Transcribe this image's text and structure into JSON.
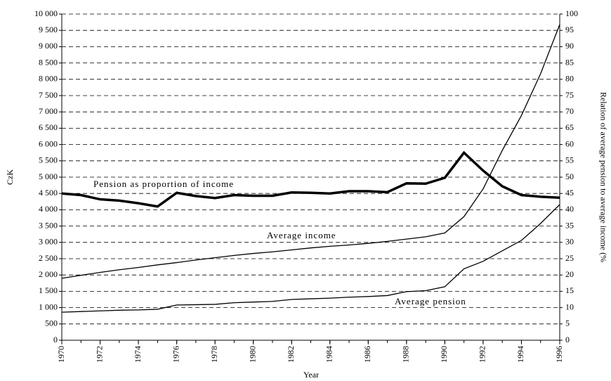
{
  "chart_data": {
    "type": "line",
    "x": [
      1970,
      1971,
      1972,
      1973,
      1974,
      1975,
      1976,
      1977,
      1978,
      1979,
      1980,
      1981,
      1982,
      1983,
      1984,
      1985,
      1986,
      1987,
      1988,
      1989,
      1990,
      1991,
      1992,
      1993,
      1994,
      1995,
      1996
    ],
    "xlim": [
      1970,
      1996
    ],
    "xticks": [
      1970,
      1972,
      1974,
      1976,
      1978,
      1980,
      1982,
      1984,
      1986,
      1988,
      1990,
      1992,
      1994,
      1996
    ],
    "xlabel": "Year",
    "ylabel": "CzK",
    "y2label": "Relation of average pension to average income (%",
    "ylim": [
      0,
      10000
    ],
    "yticks": [
      0,
      500,
      {
        "value": 1000,
        "label": "1 000"
      },
      {
        "value": 1500,
        "label": "1 500"
      },
      {
        "value": 2000,
        "label": "2 000"
      },
      {
        "value": 2500,
        "label": "2 500"
      },
      {
        "value": 3000,
        "label": "3 000"
      },
      {
        "value": 3500,
        "label": "3 500"
      },
      {
        "value": 4000,
        "label": "4 000"
      },
      {
        "value": 4500,
        "label": "4 500"
      },
      {
        "value": 5000,
        "label": "5 000"
      },
      {
        "value": 5500,
        "label": "5 500"
      },
      {
        "value": 6000,
        "label": "6 000"
      },
      {
        "value": 6500,
        "label": "6 500"
      },
      {
        "value": 7000,
        "label": "7 000"
      },
      {
        "value": 7500,
        "label": "7 500"
      },
      {
        "value": 8000,
        "label": "8 000"
      },
      {
        "value": 8500,
        "label": "8 500"
      },
      {
        "value": 9000,
        "label": "9 000"
      },
      {
        "value": 9500,
        "label": "9 500"
      },
      {
        "value": 10000,
        "label": "10 000"
      }
    ],
    "y2lim": [
      0,
      100
    ],
    "y2ticks": [
      0,
      5,
      10,
      15,
      20,
      25,
      30,
      35,
      40,
      45,
      50,
      55,
      60,
      65,
      70,
      75,
      80,
      85,
      90,
      95,
      100
    ],
    "grid": true,
    "series": [
      {
        "name": "Pension as proportion of income",
        "color": "#000000",
        "axis": "y2",
        "values": [
          45,
          44.5,
          43.2,
          42.8,
          42,
          41,
          45.2,
          44.2,
          43.6,
          44.5,
          44.3,
          44.3,
          45.3,
          45.2,
          45,
          45.7,
          45.7,
          45.4,
          48.1,
          48,
          49.8,
          57.5,
          52,
          47.2,
          44.5,
          44,
          43.7
        ]
      },
      {
        "name": "Average income",
        "color": "#000000",
        "values": [
          1900,
          1990,
          2080,
          2160,
          2230,
          2310,
          2380,
          2460,
          2530,
          2600,
          2660,
          2710,
          2770,
          2830,
          2880,
          2920,
          2970,
          3030,
          3100,
          3170,
          3290,
          3790,
          4640,
          5820,
          6890,
          8170,
          9680
        ]
      },
      {
        "name": "Average pension",
        "color": "#000000",
        "values": [
          860,
          880,
          900,
          920,
          930,
          950,
          1080,
          1090,
          1100,
          1150,
          1170,
          1190,
          1250,
          1270,
          1290,
          1320,
          1340,
          1370,
          1490,
          1520,
          1640,
          2190,
          2420,
          2740,
          3060,
          3580,
          4160
        ]
      }
    ]
  }
}
